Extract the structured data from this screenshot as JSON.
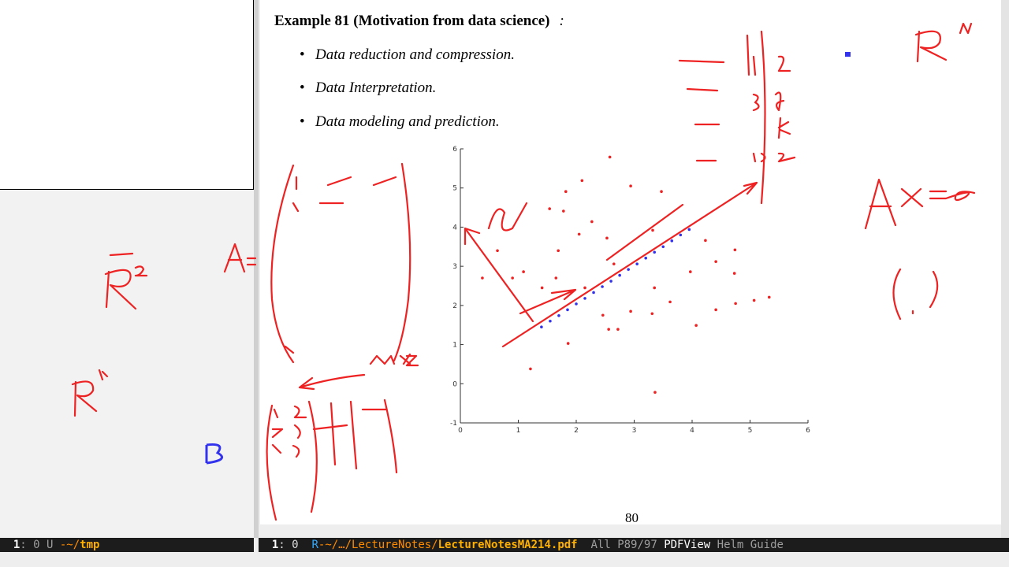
{
  "document": {
    "example_label": "Example 81",
    "example_title": "(Motivation from data science)",
    "colon": ":",
    "bullets": [
      "Data reduction and compression.",
      "Data Interpretation.",
      "Data modeling and prediction."
    ],
    "page_number": "80"
  },
  "left_modeline": [
    "1",
    ": 0 U ",
    "-~/",
    "tmp"
  ],
  "right_modeline": [
    "1",
    ": 0  ",
    "R",
    "-~/…/LectureNotes/",
    "LectureNotesMA214.pdf",
    "  All P89/97 ",
    "PDFView",
    " Helm Guide"
  ],
  "chart_data": {
    "type": "scatter",
    "xlim": [
      0,
      6
    ],
    "ylim": [
      -1,
      6
    ],
    "xticks": [
      0,
      1,
      2,
      3,
      4,
      5,
      6
    ],
    "yticks": [
      -1,
      0,
      1,
      2,
      3,
      4,
      5,
      6
    ],
    "series": [
      {
        "color": "#ee2222",
        "x": [
          2.58,
          1.82,
          2.1,
          2.94,
          3.47,
          1.54,
          1.78,
          2.27,
          2.05,
          2.53,
          3.32,
          1.69,
          0.64,
          2.65,
          4.23,
          4.74,
          0.9,
          1.09,
          1.65,
          1.41,
          2.15,
          3.35,
          3.97,
          4.41,
          4.73,
          5.07,
          5.33,
          3.62,
          4.41,
          2.46,
          2.94,
          3.31,
          2.56,
          2.72,
          4.07,
          1.86,
          1.21,
          3.36,
          0.38,
          4.75
        ],
        "values": [
          5.79,
          4.91,
          5.19,
          5.05,
          4.91,
          4.47,
          4.41,
          4.14,
          3.82,
          3.72,
          3.92,
          3.4,
          3.4,
          3.06,
          3.66,
          3.42,
          2.7,
          2.86,
          2.7,
          2.45,
          2.45,
          2.45,
          2.86,
          3.12,
          2.82,
          2.13,
          2.21,
          2.09,
          1.89,
          1.75,
          1.85,
          1.79,
          1.39,
          1.39,
          1.49,
          1.03,
          0.38,
          -0.22,
          2.7,
          2.05
        ]
      },
      {
        "color": "#3333ee",
        "x": [
          1.4,
          1.55,
          1.7,
          1.85,
          2.0,
          2.15,
          2.3,
          2.45,
          2.6,
          2.75,
          2.9,
          3.05,
          3.2,
          3.35,
          3.5,
          3.65,
          3.8,
          3.95
        ],
        "values": [
          1.45,
          1.6,
          1.74,
          1.89,
          2.04,
          2.18,
          2.33,
          2.48,
          2.62,
          2.77,
          2.92,
          3.06,
          3.21,
          3.36,
          3.5,
          3.65,
          3.8,
          3.94
        ]
      }
    ]
  }
}
